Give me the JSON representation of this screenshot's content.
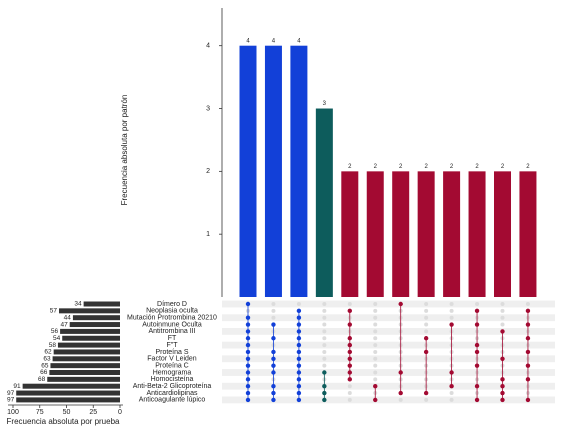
{
  "chart_data": {
    "type": "upset",
    "ylabel": "Frecuencia absoluta por patrón",
    "ylim": [
      0,
      4.6
    ],
    "yticks": [
      1,
      2,
      3,
      4
    ],
    "intersections": {
      "values": [
        4,
        4,
        4,
        3,
        2,
        2,
        2,
        2,
        2,
        2,
        2,
        2
      ],
      "colors": [
        "#1240d8",
        "#1240d8",
        "#1240d8",
        "#0d5c5c",
        "#a30a32",
        "#a30a32",
        "#a30a32",
        "#a30a32",
        "#a30a32",
        "#a30a32",
        "#a30a32",
        "#a30a32"
      ],
      "members": [
        [
          0,
          2,
          3,
          4,
          5,
          6,
          7,
          8,
          9,
          10,
          11,
          12,
          13,
          14
        ],
        [
          3,
          5,
          7,
          8,
          9,
          10,
          12,
          13,
          14
        ],
        [
          1,
          2,
          3,
          4,
          5,
          6,
          7,
          8,
          9,
          10,
          11,
          12,
          13,
          14
        ],
        [
          10,
          12,
          13,
          14
        ],
        [
          1,
          3,
          5,
          6,
          7,
          8,
          9,
          10,
          11
        ],
        [
          12,
          14
        ],
        [
          0,
          10,
          13
        ],
        [
          5,
          7,
          13
        ],
        [
          3,
          10,
          12
        ],
        [
          1,
          3,
          6,
          7,
          9,
          12,
          14
        ],
        [
          4,
          8,
          11,
          12,
          13,
          14
        ],
        [
          1,
          3,
          5,
          7,
          9,
          11,
          14
        ]
      ]
    },
    "sets": {
      "names": [
        "Dímero D",
        "Neoplasia oculta",
        "Mutación Protrombina 20210",
        "Autoinmune Oculta",
        "Antitrombina III",
        "FT",
        "F\"T",
        "Proteína S",
        "Factor V Leiden",
        "Proteína C",
        "Hemograma",
        "Homocisteína",
        "Anti-Beta-2 Glicoproteína",
        "Anticardiolipinas",
        "Anticoagulante lúpico"
      ],
      "values": [
        34,
        57,
        44,
        47,
        56,
        54,
        58,
        62,
        63,
        65,
        66,
        68,
        91,
        97,
        97
      ],
      "color": "#333333",
      "xlabel": "Frecuencia absoluta por prueba",
      "xlim": [
        100,
        0
      ],
      "xticks": [
        100,
        75,
        50,
        25,
        0
      ]
    }
  }
}
